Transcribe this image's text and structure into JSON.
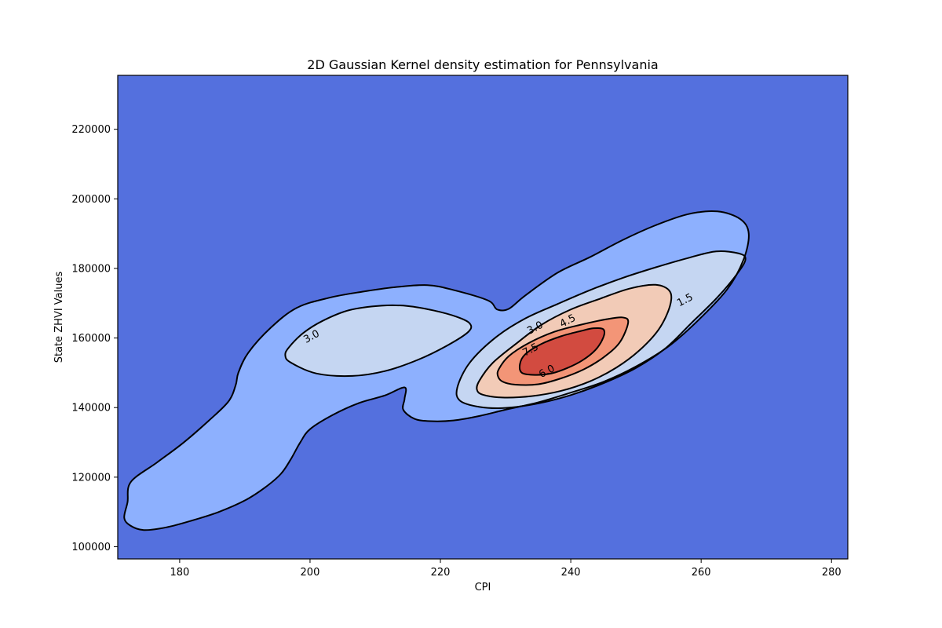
{
  "chart_data": {
    "type": "contour",
    "title": "2D Gaussian Kernel density estimation for Pennsylvania",
    "xlabel": "CPI",
    "ylabel": "State ZHVI Values",
    "xlim": [
      170.5,
      282.5
    ],
    "ylim": [
      96500,
      235500
    ],
    "xticks": [
      180,
      200,
      220,
      240,
      260,
      280
    ],
    "yticks": [
      100000,
      120000,
      140000,
      160000,
      180000,
      200000,
      220000
    ],
    "grid": false,
    "legend": false,
    "colormap": "coolwarm",
    "level_colors": {
      "background": "#5470de",
      "band_1_5": "#8db0fe",
      "band_3_0": "#c5d6f2",
      "band_4_5": "#f2cbb7",
      "band_6_0": "#f39577",
      "band_7_5": "#d24b40"
    },
    "contour_levels": [
      1.5,
      3.0,
      4.5,
      6.0,
      7.5
    ],
    "contour_labels": [
      {
        "text": "1.5",
        "x": 257.5,
        "y": 171000
      },
      {
        "text": "3.0",
        "x": 200.2,
        "y": 160500
      },
      {
        "text": "3.0",
        "x": 234.5,
        "y": 163000
      },
      {
        "text": "4.5",
        "x": 239.5,
        "y": 165000
      },
      {
        "text": "6.0",
        "x": 236.3,
        "y": 150500
      },
      {
        "text": "7.5",
        "x": 233.8,
        "y": 156700
      }
    ],
    "contours": [
      {
        "level": 1.5,
        "fill": "band_1_5",
        "points": [
          [
            174.5,
            104800
          ],
          [
            178,
            105600
          ],
          [
            182,
            107600
          ],
          [
            186,
            110000
          ],
          [
            190,
            113300
          ],
          [
            193,
            116900
          ],
          [
            195.5,
            120900
          ],
          [
            197,
            125000
          ],
          [
            198.5,
            130000
          ],
          [
            200,
            133800
          ],
          [
            203.5,
            137900
          ],
          [
            207.5,
            141300
          ],
          [
            211.5,
            143500
          ],
          [
            214.5,
            145800
          ],
          [
            214.5,
            142500
          ],
          [
            214.3,
            139400
          ],
          [
            216,
            136800
          ],
          [
            218.5,
            136100
          ],
          [
            222,
            136300
          ],
          [
            226,
            137600
          ],
          [
            230,
            139400
          ],
          [
            235,
            141500
          ],
          [
            240,
            144300
          ],
          [
            245,
            147400
          ],
          [
            250,
            151800
          ],
          [
            255,
            157600
          ],
          [
            259.5,
            165000
          ],
          [
            264,
            174000
          ],
          [
            266.5,
            182500
          ],
          [
            267.3,
            190000
          ],
          [
            266,
            194200
          ],
          [
            262.5,
            196400
          ],
          [
            258,
            195600
          ],
          [
            253,
            192400
          ],
          [
            248,
            188200
          ],
          [
            243,
            183300
          ],
          [
            238,
            178800
          ],
          [
            233,
            172200
          ],
          [
            230.5,
            168400
          ],
          [
            228.7,
            168200
          ],
          [
            227.3,
            170800
          ],
          [
            222,
            173800
          ],
          [
            218,
            175200
          ],
          [
            213,
            174600
          ],
          [
            208,
            173300
          ],
          [
            203,
            171600
          ],
          [
            198,
            168700
          ],
          [
            194,
            163000
          ],
          [
            190.5,
            155700
          ],
          [
            189,
            150000
          ],
          [
            188.6,
            146500
          ],
          [
            187.5,
            141800
          ],
          [
            184.5,
            136300
          ],
          [
            180.5,
            129800
          ],
          [
            176.5,
            124200
          ],
          [
            172.5,
            118600
          ],
          [
            172,
            112800
          ],
          [
            171.5,
            108300
          ],
          [
            172.5,
            106000
          ]
        ]
      },
      {
        "level": 3.0,
        "fill": "band_3_0",
        "points": [
          [
            197,
            153000
          ],
          [
            201,
            149800
          ],
          [
            206.5,
            149100
          ],
          [
            211.5,
            150500
          ],
          [
            216.5,
            153700
          ],
          [
            221,
            157800
          ],
          [
            224.3,
            161800
          ],
          [
            224.5,
            164200
          ],
          [
            222.5,
            166100
          ],
          [
            219,
            167900
          ],
          [
            215,
            169200
          ],
          [
            211,
            169300
          ],
          [
            206,
            168000
          ],
          [
            202,
            165000
          ],
          [
            199,
            161500
          ],
          [
            196.8,
            157400
          ],
          [
            196.2,
            155100
          ]
        ]
      },
      {
        "level": 3.0,
        "fill": "band_3_0",
        "points": [
          [
            223,
            142000
          ],
          [
            226,
            140200
          ],
          [
            230,
            139900
          ],
          [
            235,
            141200
          ],
          [
            240,
            143600
          ],
          [
            245,
            147000
          ],
          [
            250,
            151400
          ],
          [
            254.5,
            157000
          ],
          [
            258.5,
            164300
          ],
          [
            262.5,
            171700
          ],
          [
            265.5,
            178400
          ],
          [
            266.8,
            182600
          ],
          [
            265.8,
            184300
          ],
          [
            262.3,
            184900
          ],
          [
            258,
            183000
          ],
          [
            253,
            180300
          ],
          [
            248,
            177300
          ],
          [
            243,
            173800
          ],
          [
            238,
            169800
          ],
          [
            233,
            165600
          ],
          [
            228.5,
            160200
          ],
          [
            224.5,
            152900
          ],
          [
            222.6,
            145800
          ]
        ]
      },
      {
        "level": 4.5,
        "fill": "band_4_5",
        "points": [
          [
            226.5,
            143700
          ],
          [
            229.5,
            142900
          ],
          [
            234,
            143300
          ],
          [
            238.5,
            144800
          ],
          [
            243,
            147600
          ],
          [
            247,
            151500
          ],
          [
            250.5,
            156400
          ],
          [
            253.5,
            162500
          ],
          [
            255.2,
            169100
          ],
          [
            255.2,
            173400
          ],
          [
            253,
            175300
          ],
          [
            249,
            174200
          ],
          [
            244.5,
            171300
          ],
          [
            240,
            168200
          ],
          [
            235.5,
            163800
          ],
          [
            231.5,
            158200
          ],
          [
            228,
            152800
          ],
          [
            226,
            147800
          ],
          [
            225.6,
            145200
          ]
        ]
      },
      {
        "level": 6.0,
        "fill": "band_6_0",
        "points": [
          [
            229.5,
            147500
          ],
          [
            231.5,
            146600
          ],
          [
            235,
            146700
          ],
          [
            238.5,
            148400
          ],
          [
            242,
            151000
          ],
          [
            245,
            154400
          ],
          [
            247.5,
            158700
          ],
          [
            248.8,
            164400
          ],
          [
            248,
            165900
          ],
          [
            245.5,
            165400
          ],
          [
            241.5,
            163800
          ],
          [
            237.5,
            161800
          ],
          [
            233.5,
            158500
          ],
          [
            230.5,
            154800
          ],
          [
            229,
            151200
          ],
          [
            228.8,
            149200
          ]
        ]
      },
      {
        "level": 7.5,
        "fill": "band_7_5",
        "points": [
          [
            232.5,
            150000
          ],
          [
            234.5,
            149400
          ],
          [
            237,
            149800
          ],
          [
            239.5,
            151400
          ],
          [
            241.8,
            153600
          ],
          [
            243.8,
            156600
          ],
          [
            245,
            160200
          ],
          [
            245,
            162500
          ],
          [
            243.5,
            162800
          ],
          [
            241.5,
            162000
          ],
          [
            238.5,
            160500
          ],
          [
            235.5,
            158300
          ],
          [
            233,
            155300
          ],
          [
            232.2,
            152500
          ]
        ]
      }
    ]
  }
}
